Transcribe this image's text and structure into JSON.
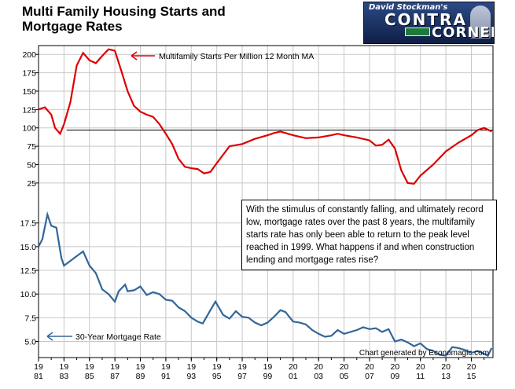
{
  "title_lines": [
    "Multi Family Housing Starts and",
    "Mortgage Rates"
  ],
  "logo": {
    "line1": "David Stockman's",
    "line2": "CONTRA",
    "line3": "CORNER"
  },
  "note": "With the stimulus of constantly falling, and ultimately record low, mortgage rates over the past 8 years, the multifamily starts rate has only been able to return to the peak level reached in 1999. What happens if and when construction lending and mortgage rates rise?",
  "credit": "Chart generated by Economagic.com",
  "colors": {
    "starts": "#dd0000",
    "rate": "#336699",
    "grid": "#c8c8c8"
  },
  "chart_data": {
    "type": "line",
    "x_ticks": [
      {
        "top": "19",
        "bottom": "81"
      },
      {
        "top": "19",
        "bottom": "83"
      },
      {
        "top": "19",
        "bottom": "85"
      },
      {
        "top": "19",
        "bottom": "87"
      },
      {
        "top": "19",
        "bottom": "89"
      },
      {
        "top": "19",
        "bottom": "91"
      },
      {
        "top": "19",
        "bottom": "93"
      },
      {
        "top": "19",
        "bottom": "95"
      },
      {
        "top": "19",
        "bottom": "97"
      },
      {
        "top": "19",
        "bottom": "99"
      },
      {
        "top": "20",
        "bottom": "01"
      },
      {
        "top": "20",
        "bottom": "03"
      },
      {
        "top": "20",
        "bottom": "05"
      },
      {
        "top": "20",
        "bottom": "07"
      },
      {
        "top": "20",
        "bottom": "09"
      },
      {
        "top": "20",
        "bottom": "11"
      },
      {
        "top": "20",
        "bottom": "13"
      },
      {
        "top": "20",
        "bottom": "15"
      }
    ],
    "xlim": [
      1981,
      2016.7
    ],
    "grid": true,
    "panels": [
      {
        "name": "Multifamily Starts Per Million 12 Month MA",
        "annotation": "Multifamily Starts Per Million 12 Month MA",
        "y_ticks": [
          25,
          50,
          75,
          100,
          125,
          150,
          175,
          200
        ],
        "ylim": [
          12,
          212
        ],
        "reference_line": 97,
        "series": {
          "name": "Multifamily Starts Per Million 12 Month MA",
          "x": [
            1981.0,
            1981.5,
            1982.0,
            1982.3,
            1982.7,
            1983.0,
            1983.5,
            1984.0,
            1984.5,
            1985.0,
            1985.5,
            1986.0,
            1986.5,
            1987.0,
            1987.5,
            1988.0,
            1988.5,
            1989.0,
            1989.5,
            1990.0,
            1990.5,
            1991.0,
            1991.5,
            1992.0,
            1992.5,
            1993.0,
            1993.5,
            1994.0,
            1994.5,
            1995.0,
            1996.0,
            1997.0,
            1998.0,
            1999.0,
            1999.5,
            2000.0,
            2001.0,
            2002.0,
            2003.0,
            2004.0,
            2004.5,
            2005.0,
            2006.0,
            2007.0,
            2007.5,
            2008.0,
            2008.5,
            2009.0,
            2009.5,
            2010.0,
            2010.5,
            2011.0,
            2012.0,
            2013.0,
            2014.0,
            2015.0,
            2015.5,
            2016.0,
            2016.6
          ],
          "y": [
            125,
            128,
            118,
            100,
            92,
            105,
            135,
            185,
            202,
            192,
            188,
            198,
            207,
            205,
            178,
            150,
            130,
            122,
            118,
            115,
            105,
            92,
            78,
            58,
            47,
            45,
            44,
            38,
            40,
            52,
            75,
            78,
            85,
            90,
            93,
            95,
            90,
            86,
            87,
            90,
            92,
            90,
            87,
            83,
            76,
            77,
            84,
            72,
            42,
            25,
            24,
            35,
            50,
            68,
            80,
            90,
            97,
            100,
            95
          ]
        }
      },
      {
        "name": "30-Year Mortgage Rate",
        "annotation": "30-Year  Mortgage Rate",
        "y_ticks": [
          5.0,
          7.5,
          10.0,
          12.5,
          15.0,
          17.5
        ],
        "ylim": [
          3.3,
          19.3
        ],
        "series": {
          "name": "30-Year  Mortgage Rate",
          "x": [
            1981.0,
            1981.3,
            1981.7,
            1982.0,
            1982.4,
            1982.8,
            1983.0,
            1983.5,
            1984.0,
            1984.5,
            1985.0,
            1985.5,
            1986.0,
            1986.5,
            1987.0,
            1987.3,
            1987.8,
            1988.0,
            1988.5,
            1989.0,
            1989.5,
            1990.0,
            1990.5,
            1991.0,
            1991.5,
            1992.0,
            1992.5,
            1993.0,
            1993.5,
            1993.9,
            1994.5,
            1994.9,
            1995.5,
            1996.0,
            1996.5,
            1997.0,
            1997.5,
            1998.0,
            1998.5,
            1999.0,
            1999.5,
            2000.0,
            2000.4,
            2001.0,
            2001.5,
            2002.0,
            2002.5,
            2003.0,
            2003.5,
            2004.0,
            2004.5,
            2005.0,
            2006.0,
            2006.5,
            2007.0,
            2007.5,
            2008.0,
            2008.5,
            2009.0,
            2009.5,
            2010.0,
            2010.5,
            2011.0,
            2011.5,
            2012.0,
            2012.5,
            2013.0,
            2013.5,
            2014.0,
            2014.5,
            2015.0,
            2015.5,
            2016.0,
            2016.3,
            2016.6
          ],
          "y": [
            15.0,
            15.8,
            18.4,
            17.2,
            17.0,
            13.8,
            13.0,
            13.5,
            14.0,
            14.5,
            13.0,
            12.2,
            10.5,
            10.0,
            9.2,
            10.3,
            11.0,
            10.3,
            10.4,
            10.8,
            9.9,
            10.2,
            10.0,
            9.4,
            9.3,
            8.6,
            8.2,
            7.5,
            7.1,
            6.9,
            8.3,
            9.2,
            7.8,
            7.4,
            8.2,
            7.6,
            7.5,
            7.0,
            6.7,
            7.0,
            7.6,
            8.3,
            8.1,
            7.1,
            7.0,
            6.8,
            6.2,
            5.8,
            5.5,
            5.6,
            6.2,
            5.8,
            6.2,
            6.5,
            6.3,
            6.4,
            6.0,
            6.3,
            5.0,
            5.2,
            4.9,
            4.5,
            4.8,
            4.2,
            4.0,
            3.6,
            3.5,
            4.4,
            4.3,
            4.1,
            3.8,
            4.0,
            3.7,
            3.5,
            4.3
          ]
        }
      }
    ]
  }
}
